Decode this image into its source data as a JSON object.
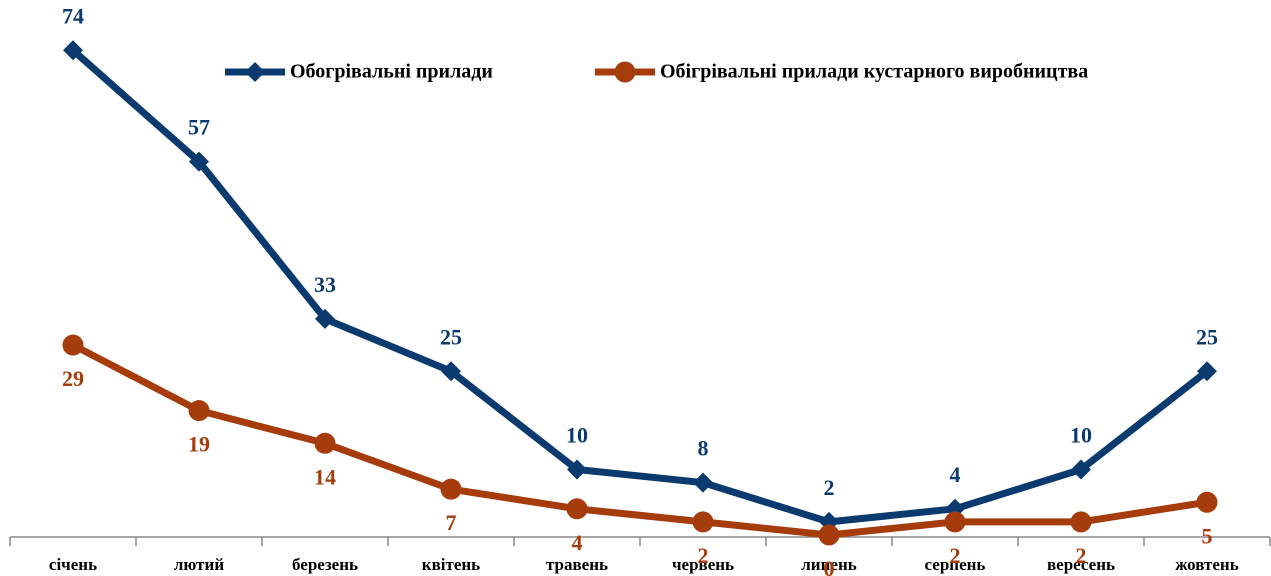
{
  "chart_data": {
    "type": "line",
    "categories": [
      "січень",
      "лютий",
      "березень",
      "квітень",
      "травень",
      "червень",
      "липень",
      "серпень",
      "вересень",
      "жовтень"
    ],
    "series": [
      {
        "name": "Обогрівальні прилади",
        "color": "#0b3a6e",
        "marker": "diamond",
        "values": [
          74,
          57,
          33,
          25,
          10,
          8,
          2,
          4,
          10,
          25
        ]
      },
      {
        "name": "Обігрівальні прилади кустарного виробництва",
        "color": "#a63c0b",
        "marker": "circle",
        "values": [
          29,
          19,
          14,
          7,
          4,
          2,
          0,
          2,
          2,
          5
        ]
      }
    ],
    "ylim": [
      0,
      80
    ],
    "grid": false,
    "legend": "top"
  }
}
